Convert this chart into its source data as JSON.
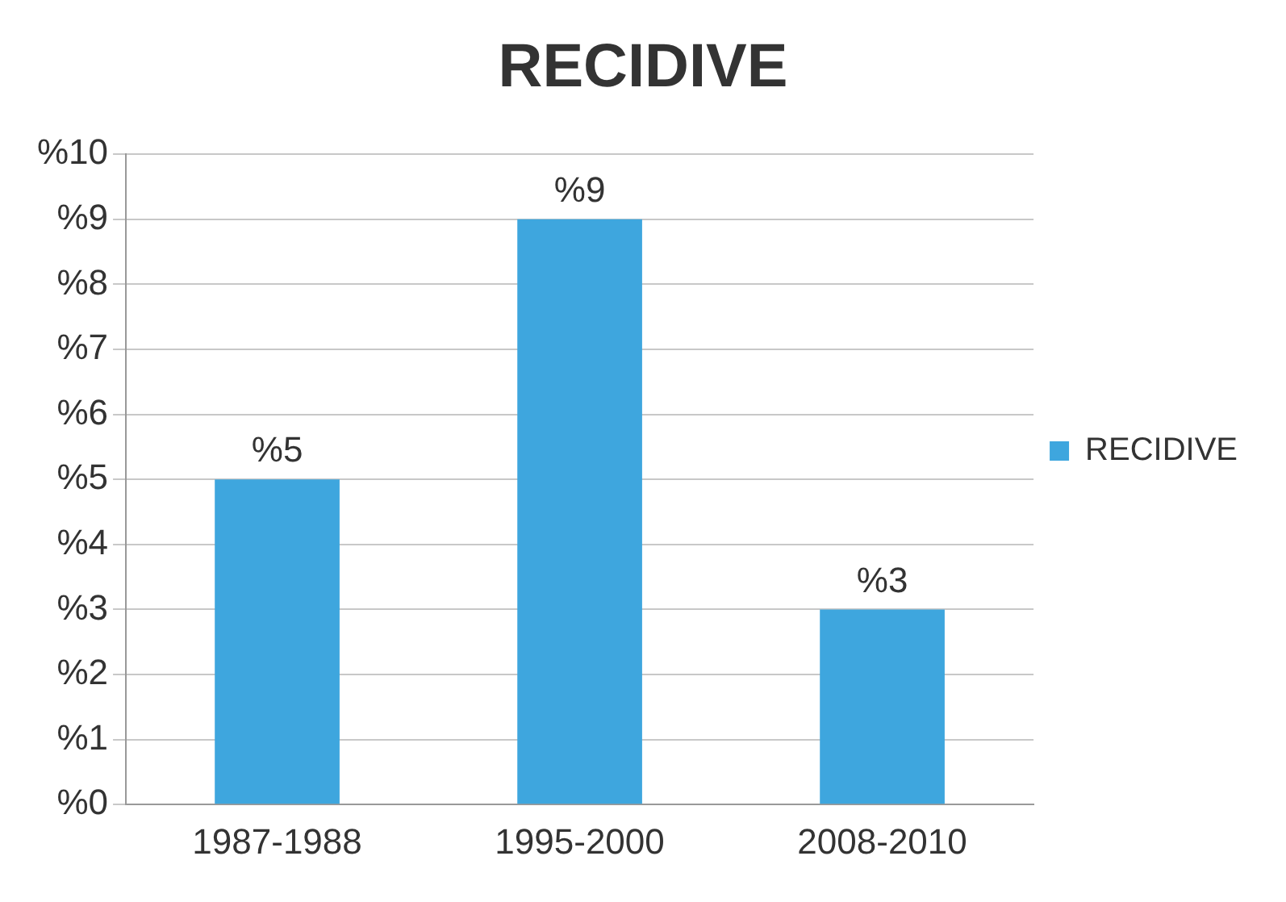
{
  "chart_data": {
    "type": "bar",
    "title": "RECIDIVE",
    "categories": [
      "1987-1988",
      "1995-2000",
      "2008-2010"
    ],
    "series": [
      {
        "name": "RECIDIVE",
        "color": "#3ea6de",
        "values": [
          5,
          9,
          3
        ],
        "value_labels": [
          "%5",
          "%9",
          "%3"
        ]
      }
    ],
    "ylim": [
      0,
      10
    ],
    "yticks": [
      {
        "value": 0,
        "label": "%0"
      },
      {
        "value": 1,
        "label": "%1"
      },
      {
        "value": 2,
        "label": "%2"
      },
      {
        "value": 3,
        "label": "%3"
      },
      {
        "value": 4,
        "label": "%4"
      },
      {
        "value": 5,
        "label": "%5"
      },
      {
        "value": 6,
        "label": "%6"
      },
      {
        "value": 7,
        "label": "%7"
      },
      {
        "value": 8,
        "label": "%8"
      },
      {
        "value": 9,
        "label": "%9"
      },
      {
        "value": 10,
        "label": "%10"
      }
    ],
    "grid": "y",
    "legend": "right"
  }
}
